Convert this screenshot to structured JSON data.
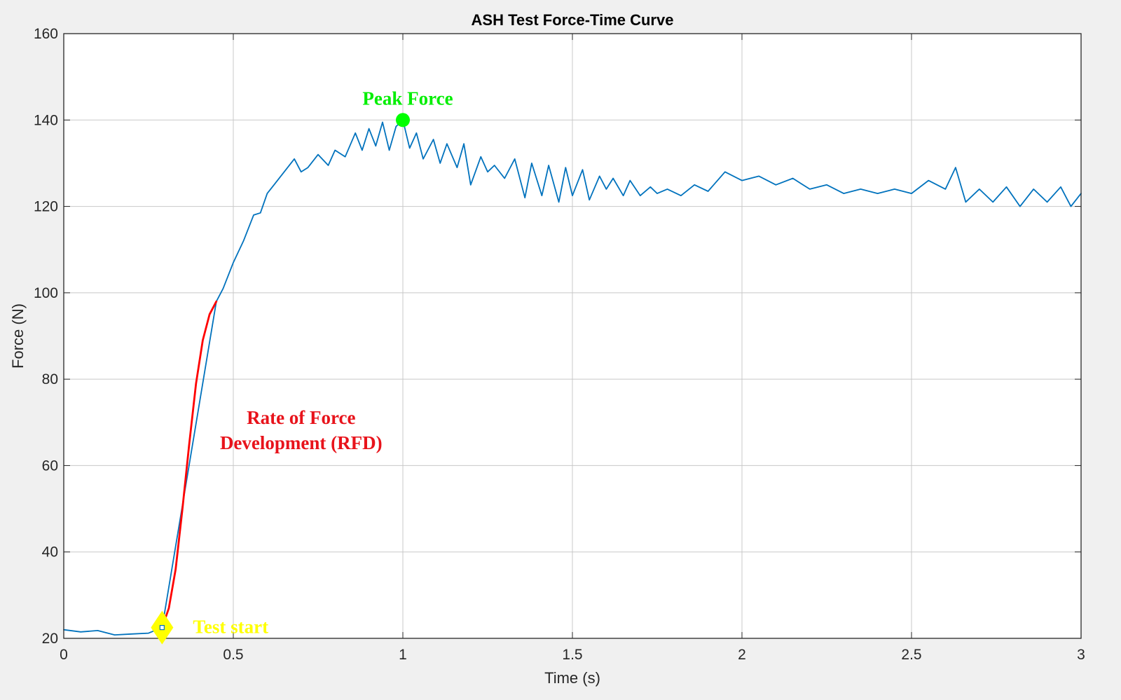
{
  "chart_data": {
    "type": "line",
    "title": "ASH Test Force-Time Curve",
    "xlabel": "Time (s)",
    "ylabel": "Force (N)",
    "xlim": [
      0,
      3
    ],
    "ylim": [
      20,
      160
    ],
    "xticks": [
      0,
      0.5,
      1,
      1.5,
      2,
      2.5,
      3
    ],
    "xtick_labels": [
      "0",
      "0.5",
      "1",
      "1.5",
      "2",
      "2.5",
      "3"
    ],
    "yticks": [
      20,
      40,
      60,
      80,
      100,
      120,
      140,
      160
    ],
    "ytick_labels": [
      "20",
      "40",
      "60",
      "80",
      "100",
      "120",
      "140",
      "160"
    ],
    "grid": true,
    "colors": {
      "force_line": "#0072BD",
      "rfd_line": "#FF0000",
      "peak_marker": "#00FF00",
      "start_marker": "#FFFF00",
      "peak_text": "#00EE00",
      "rfd_text": "#E8131B",
      "start_text": "#FFFF00",
      "grid": "#c8c8c8",
      "axes_bg": "#ffffff",
      "figure_bg": "#f0f0f0"
    },
    "series": [
      {
        "role": "force",
        "x": [
          0,
          0.05,
          0.1,
          0.15,
          0.2,
          0.25,
          0.29,
          0.45,
          0.47,
          0.5,
          0.53,
          0.56,
          0.58,
          0.6,
          0.62,
          0.65,
          0.68,
          0.7,
          0.72,
          0.75,
          0.78,
          0.8,
          0.83,
          0.86,
          0.88,
          0.9,
          0.92,
          0.94,
          0.96,
          0.98,
          1.0,
          1.02,
          1.04,
          1.06,
          1.09,
          1.11,
          1.13,
          1.16,
          1.18,
          1.2,
          1.23,
          1.25,
          1.27,
          1.3,
          1.33,
          1.36,
          1.38,
          1.41,
          1.43,
          1.46,
          1.48,
          1.5,
          1.53,
          1.55,
          1.58,
          1.6,
          1.62,
          1.65,
          1.67,
          1.7,
          1.73,
          1.75,
          1.78,
          1.82,
          1.86,
          1.9,
          1.95,
          2.0,
          2.05,
          2.1,
          2.15,
          2.2,
          2.25,
          2.3,
          2.35,
          2.4,
          2.45,
          2.5,
          2.55,
          2.6,
          2.63,
          2.66,
          2.7,
          2.74,
          2.78,
          2.82,
          2.86,
          2.9,
          2.94,
          2.97,
          3.0
        ],
        "y": [
          22.0,
          21.5,
          21.8,
          20.8,
          21.0,
          21.2,
          22.5,
          98.0,
          101,
          107,
          112,
          118,
          118.5,
          123,
          125,
          128,
          131,
          128,
          129,
          132,
          129.5,
          133,
          131.5,
          137,
          133,
          138,
          134,
          139.5,
          133,
          138.5,
          140,
          133.5,
          137,
          131,
          135.5,
          130,
          134.5,
          129,
          134.5,
          125,
          131.5,
          128,
          129.5,
          126.5,
          131,
          122,
          130,
          122.5,
          129.5,
          121,
          129,
          122.5,
          128.5,
          121.5,
          127,
          124,
          126.5,
          122.5,
          126,
          122.5,
          124.5,
          123,
          124,
          122.5,
          125,
          123.5,
          128,
          126,
          127,
          125,
          126.5,
          124,
          125,
          123,
          124,
          123,
          124,
          123,
          126,
          124,
          129,
          121,
          124,
          121,
          124.5,
          120,
          124,
          121,
          124.5,
          120,
          123
        ]
      },
      {
        "role": "rfd",
        "x": [
          0.29,
          0.31,
          0.33,
          0.35,
          0.37,
          0.39,
          0.41,
          0.43,
          0.45
        ],
        "y": [
          22.5,
          27,
          36,
          50,
          65,
          79,
          89,
          95,
          98
        ]
      }
    ],
    "annotations": {
      "peak": {
        "text": "Peak Force",
        "x": 1.0,
        "y": 140
      },
      "rfd": {
        "line1": "Rate of Force",
        "line2": "Development (RFD)",
        "x": 0.7,
        "y": 64
      },
      "start": {
        "text": "Test start",
        "x": 0.29,
        "y": 22.5
      }
    }
  }
}
